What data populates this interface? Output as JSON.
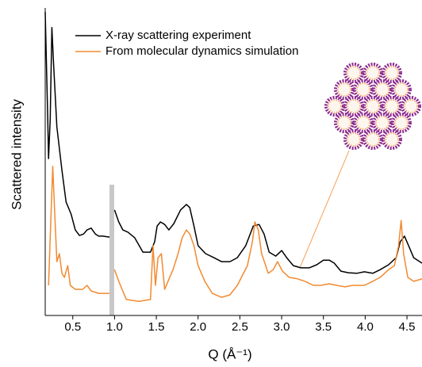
{
  "chart_data": {
    "type": "line",
    "x_label": "Q (Å⁻¹)",
    "y_label": "Scattered intensity",
    "xlim": [
      0.17,
      4.68
    ],
    "ylim": [
      0,
      100
    ],
    "xticks": [
      0.5,
      {
        "value": 1,
        "label": "1.0"
      },
      1.5,
      {
        "value": 2,
        "label": "2.0"
      },
      2.5,
      {
        "value": 3,
        "label": "3.0"
      },
      3.5,
      {
        "value": 4,
        "label": "4.0"
      },
      4.5
    ],
    "legend": "upper left",
    "series": [
      {
        "name": "X-ray scattering experiment",
        "color": "#000000",
        "x": [
          0.17,
          0.2,
          0.21,
          0.23,
          0.25,
          0.27,
          0.31,
          0.37,
          0.42,
          0.48,
          0.53,
          0.58,
          0.63,
          0.67,
          0.72,
          0.77,
          0.81,
          0.86,
          0.94,
          0.97,
          1.0,
          1.05,
          1.1,
          1.16,
          1.24,
          1.34,
          1.43,
          1.48,
          1.51,
          1.55,
          1.6,
          1.65,
          1.71,
          1.79,
          1.86,
          1.9,
          1.95,
          2.0,
          2.09,
          2.19,
          2.28,
          2.38,
          2.47,
          2.57,
          2.66,
          2.73,
          2.79,
          2.85,
          2.93,
          3.0,
          3.06,
          3.14,
          3.23,
          3.33,
          3.42,
          3.5,
          3.57,
          3.63,
          3.71,
          3.8,
          3.9,
          3.99,
          4.09,
          4.18,
          4.28,
          4.37,
          4.42,
          4.47,
          4.52,
          4.58,
          4.68
        ],
        "values": [
          98.7,
          63.9,
          51.0,
          63.9,
          93.6,
          82.0,
          61.3,
          47.2,
          36.9,
          33.0,
          27.8,
          26.0,
          26.5,
          27.8,
          28.4,
          26.5,
          25.8,
          25.8,
          25.5,
          null,
          34.3,
          30.4,
          27.8,
          27.1,
          25.3,
          20.6,
          20.6,
          24.0,
          29.1,
          30.4,
          29.6,
          27.8,
          29.9,
          34.3,
          36.1,
          35.1,
          29.1,
          22.7,
          20.1,
          18.8,
          17.5,
          17.5,
          18.8,
          22.7,
          29.1,
          29.6,
          26.5,
          20.6,
          19.3,
          21.1,
          18.8,
          16.2,
          15.5,
          15.5,
          16.5,
          18.0,
          18.0,
          17.0,
          14.4,
          13.9,
          13.7,
          14.2,
          13.7,
          14.9,
          16.5,
          18.8,
          24.0,
          25.8,
          22.7,
          18.8,
          17.0
        ]
      },
      {
        "name": "From molecular dynamics simulation",
        "color": "#f28a30",
        "x": [
          0.21,
          0.23,
          0.26,
          0.28,
          0.31,
          0.34,
          0.37,
          0.4,
          0.44,
          0.47,
          0.53,
          0.62,
          0.67,
          0.72,
          0.81,
          0.94,
          0.97,
          1.0,
          1.05,
          1.14,
          1.29,
          1.43,
          1.46,
          1.49,
          1.52,
          1.56,
          1.6,
          1.64,
          1.7,
          1.76,
          1.81,
          1.86,
          1.9,
          1.95,
          2.0,
          2.08,
          2.17,
          2.28,
          2.38,
          2.47,
          2.59,
          2.65,
          2.68,
          2.72,
          2.76,
          2.84,
          2.9,
          2.95,
          3.01,
          3.09,
          3.19,
          3.28,
          3.38,
          3.47,
          3.57,
          3.66,
          3.76,
          3.85,
          3.99,
          4.09,
          4.18,
          4.28,
          4.35,
          4.4,
          4.43,
          4.46,
          4.51,
          4.58,
          4.68
        ],
        "values": [
          9.8,
          25.3,
          48.5,
          35.6,
          17.5,
          20.1,
          13.7,
          12.4,
          16.2,
          9.8,
          8.5,
          8.5,
          9.8,
          8.0,
          7.2,
          7.2,
          null,
          14.9,
          11.1,
          5.2,
          4.6,
          5.2,
          22.7,
          9.8,
          18.8,
          20.1,
          8.5,
          11.1,
          14.9,
          20.1,
          25.3,
          27.8,
          26.5,
          22.7,
          16.2,
          11.1,
          7.2,
          5.9,
          6.7,
          9.8,
          16.2,
          24.0,
          30.4,
          27.8,
          20.1,
          13.7,
          14.9,
          17.5,
          14.4,
          12.4,
          11.9,
          11.1,
          9.8,
          9.8,
          10.3,
          9.8,
          9.3,
          9.8,
          9.8,
          11.1,
          12.4,
          14.9,
          16.2,
          22.7,
          30.9,
          20.1,
          12.4,
          11.1,
          11.9
        ]
      }
    ]
  }
}
